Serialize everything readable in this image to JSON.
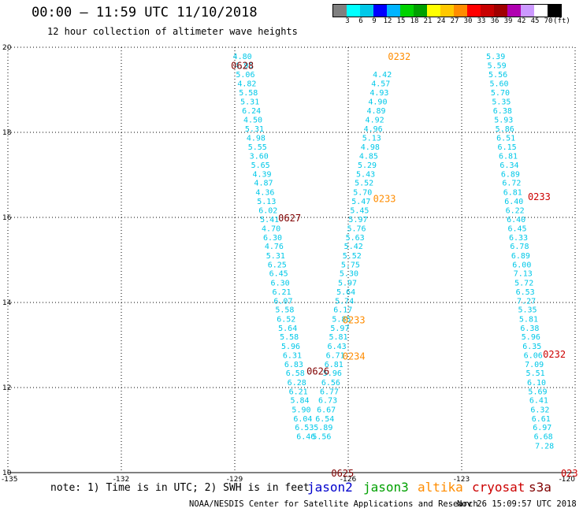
{
  "header": {
    "title": "00:00 – 11:59 UTC 11/10/2018",
    "subtitle": "12 hour collection of altimeter wave heights"
  },
  "legend": {
    "colors": [
      "#808080",
      "#00ffff",
      "#00c8e8",
      "#0000ff",
      "#00b4ff",
      "#00d300",
      "#00a000",
      "#ffff00",
      "#ffc800",
      "#ff8c00",
      "#ff0000",
      "#c80000",
      "#a00000",
      "#b000b0",
      "#cc99ff",
      "#ffffff",
      "#000000"
    ],
    "labels": [
      "3",
      "6",
      "9",
      "12",
      "15",
      "18",
      "21",
      "24",
      "27",
      "30",
      "33",
      "36",
      "39",
      "42",
      "45",
      "70",
      "(ft)"
    ]
  },
  "footer": {
    "note": "note: 1) Time is in UTC; 2) SWH is in feet",
    "satellites": [
      {
        "name": "jason2",
        "color": "#0000cc"
      },
      {
        "name": "jason3",
        "color": "#00a000"
      },
      {
        "name": "altika",
        "color": "#ff8c00"
      },
      {
        "name": "cryosat",
        "color": "#cc0000"
      },
      {
        "name": "s3a",
        "color": "#800000"
      }
    ],
    "credit": "NOAA/NESDIS Center for Satellite Applications and Research",
    "timestamp": "Nov 26 15:09:57 UTC 2018"
  },
  "chart_data": {
    "type": "scatter",
    "title": "00:00 – 11:59 UTC 11/10/2018",
    "subtitle": "12 hour collection of altimeter wave heights",
    "xlim": [
      -135,
      -120
    ],
    "ylim": [
      10,
      20
    ],
    "x_ticks": [
      -135,
      -132,
      -129,
      -126,
      -123,
      -120
    ],
    "x_tick_labels": [
      "-135",
      "-132",
      "-129",
      "-126",
      "-123",
      "-120"
    ],
    "y_ticks": [
      10,
      12,
      14,
      16,
      18,
      20
    ],
    "y_tick_labels": [
      "10",
      "12",
      "14",
      "16",
      "18",
      "20"
    ],
    "grid": true,
    "point_color": "#00c8e8",
    "series": [
      {
        "values": [
          {
            "x": -128.8,
            "y": 19.8,
            "v": "4.80"
          },
          {
            "x": -128.76,
            "y": 19.58,
            "v": "4.95"
          },
          {
            "x": -128.72,
            "y": 19.37,
            "v": "5.06"
          },
          {
            "x": -128.68,
            "y": 19.16,
            "v": "4.82"
          },
          {
            "x": -128.64,
            "y": 18.94,
            "v": "5.58"
          },
          {
            "x": -128.6,
            "y": 18.73,
            "v": "5.31"
          },
          {
            "x": -128.56,
            "y": 18.52,
            "v": "6.24"
          },
          {
            "x": -128.52,
            "y": 18.31,
            "v": "4.50"
          },
          {
            "x": -128.48,
            "y": 18.09,
            "v": "5.31"
          },
          {
            "x": -128.44,
            "y": 17.88,
            "v": "4.98"
          },
          {
            "x": -128.4,
            "y": 17.67,
            "v": "5.55"
          },
          {
            "x": -128.36,
            "y": 17.45,
            "v": "3.60"
          },
          {
            "x": -128.32,
            "y": 17.24,
            "v": "5.65"
          },
          {
            "x": -128.28,
            "y": 17.03,
            "v": "4.39"
          },
          {
            "x": -128.24,
            "y": 16.82,
            "v": "4.87"
          },
          {
            "x": -128.2,
            "y": 16.6,
            "v": "4.36"
          },
          {
            "x": -128.16,
            "y": 16.39,
            "v": "5.13"
          },
          {
            "x": -128.12,
            "y": 16.18,
            "v": "6.02"
          },
          {
            "x": -128.08,
            "y": 15.96,
            "v": "5.41"
          },
          {
            "x": -128.04,
            "y": 15.75,
            "v": "4.70"
          },
          {
            "x": -128.0,
            "y": 15.54,
            "v": "6.30"
          },
          {
            "x": -127.96,
            "y": 15.33,
            "v": "4.76"
          },
          {
            "x": -127.92,
            "y": 15.11,
            "v": "5.31"
          },
          {
            "x": -127.88,
            "y": 14.9,
            "v": "6.25"
          },
          {
            "x": -127.84,
            "y": 14.69,
            "v": "6.45"
          },
          {
            "x": -127.8,
            "y": 14.47,
            "v": "6.30"
          },
          {
            "x": -127.76,
            "y": 14.26,
            "v": "6.21"
          },
          {
            "x": -127.72,
            "y": 14.05,
            "v": "6.07"
          },
          {
            "x": -127.68,
            "y": 13.84,
            "v": "5.58"
          },
          {
            "x": -127.64,
            "y": 13.62,
            "v": "6.52"
          },
          {
            "x": -127.6,
            "y": 13.41,
            "v": "5.64"
          },
          {
            "x": -127.56,
            "y": 13.2,
            "v": "5.58"
          },
          {
            "x": -127.52,
            "y": 12.98,
            "v": "5.96"
          },
          {
            "x": -127.48,
            "y": 12.77,
            "v": "6.31"
          },
          {
            "x": -127.44,
            "y": 12.56,
            "v": "6.83"
          },
          {
            "x": -127.4,
            "y": 12.35,
            "v": "6.58"
          },
          {
            "x": -127.36,
            "y": 12.13,
            "v": "6.28"
          },
          {
            "x": -127.32,
            "y": 11.92,
            "v": "6.21"
          },
          {
            "x": -127.28,
            "y": 11.71,
            "v": "5.84"
          },
          {
            "x": -127.24,
            "y": 11.49,
            "v": "5.90"
          },
          {
            "x": -127.2,
            "y": 11.28,
            "v": "6.04"
          },
          {
            "x": -127.16,
            "y": 11.07,
            "v": "6.53"
          },
          {
            "x": -127.12,
            "y": 10.86,
            "v": "6.46"
          }
        ]
      },
      {
        "values": [
          {
            "x": -126.7,
            "y": 10.86,
            "v": "5.56"
          },
          {
            "x": -126.66,
            "y": 11.07,
            "v": "5.89"
          },
          {
            "x": -126.62,
            "y": 11.28,
            "v": "6.54"
          },
          {
            "x": -126.58,
            "y": 11.49,
            "v": "6.67"
          },
          {
            "x": -126.54,
            "y": 11.71,
            "v": "6.73"
          },
          {
            "x": -126.5,
            "y": 11.92,
            "v": "6.77"
          },
          {
            "x": -126.46,
            "y": 12.13,
            "v": "6.56"
          },
          {
            "x": -126.42,
            "y": 12.35,
            "v": "5.96"
          },
          {
            "x": -126.38,
            "y": 12.56,
            "v": "6.81"
          },
          {
            "x": -126.34,
            "y": 12.77,
            "v": "6.71"
          },
          {
            "x": -126.3,
            "y": 12.98,
            "v": "6.43"
          },
          {
            "x": -126.26,
            "y": 13.2,
            "v": "5.81"
          },
          {
            "x": -126.22,
            "y": 13.41,
            "v": "5.97"
          },
          {
            "x": -126.18,
            "y": 13.62,
            "v": "5.85"
          },
          {
            "x": -126.14,
            "y": 13.84,
            "v": "6.17"
          },
          {
            "x": -126.1,
            "y": 14.05,
            "v": "5.74"
          },
          {
            "x": -126.06,
            "y": 14.26,
            "v": "5.64"
          },
          {
            "x": -126.02,
            "y": 14.47,
            "v": "5.97"
          },
          {
            "x": -125.98,
            "y": 14.69,
            "v": "5.30"
          },
          {
            "x": -125.94,
            "y": 14.9,
            "v": "5.75"
          },
          {
            "x": -125.9,
            "y": 15.11,
            "v": "5.52"
          },
          {
            "x": -125.86,
            "y": 15.33,
            "v": "5.42"
          },
          {
            "x": -125.82,
            "y": 15.54,
            "v": "5.63"
          },
          {
            "x": -125.78,
            "y": 15.75,
            "v": "5.76"
          },
          {
            "x": -125.74,
            "y": 15.96,
            "v": "5.97"
          },
          {
            "x": -125.7,
            "y": 16.18,
            "v": "5.45"
          },
          {
            "x": -125.66,
            "y": 16.39,
            "v": "5.47"
          },
          {
            "x": -125.62,
            "y": 16.6,
            "v": "5.70"
          },
          {
            "x": -125.58,
            "y": 16.82,
            "v": "5.52"
          },
          {
            "x": -125.54,
            "y": 17.03,
            "v": "5.43"
          },
          {
            "x": -125.5,
            "y": 17.24,
            "v": "5.29"
          },
          {
            "x": -125.46,
            "y": 17.45,
            "v": "4.85"
          },
          {
            "x": -125.42,
            "y": 17.67,
            "v": "4.98"
          },
          {
            "x": -125.38,
            "y": 17.88,
            "v": "5.13"
          },
          {
            "x": -125.34,
            "y": 18.09,
            "v": "4.96"
          },
          {
            "x": -125.3,
            "y": 18.31,
            "v": "4.92"
          },
          {
            "x": -125.26,
            "y": 18.52,
            "v": "4.89"
          },
          {
            "x": -125.22,
            "y": 18.73,
            "v": "4.90"
          },
          {
            "x": -125.18,
            "y": 18.94,
            "v": "4.93"
          },
          {
            "x": -125.14,
            "y": 19.16,
            "v": "4.57"
          },
          {
            "x": -125.1,
            "y": 19.37,
            "v": "4.42"
          }
        ]
      },
      {
        "values": [
          {
            "x": -122.1,
            "y": 19.8,
            "v": "5.39"
          },
          {
            "x": -122.07,
            "y": 19.58,
            "v": "5.59"
          },
          {
            "x": -122.04,
            "y": 19.37,
            "v": "5.56"
          },
          {
            "x": -122.01,
            "y": 19.16,
            "v": "5.60"
          },
          {
            "x": -121.98,
            "y": 18.94,
            "v": "5.70"
          },
          {
            "x": -121.95,
            "y": 18.73,
            "v": "5.35"
          },
          {
            "x": -121.92,
            "y": 18.52,
            "v": "6.38"
          },
          {
            "x": -121.89,
            "y": 18.31,
            "v": "5.93"
          },
          {
            "x": -121.86,
            "y": 18.09,
            "v": "5.86"
          },
          {
            "x": -121.83,
            "y": 17.88,
            "v": "6.51"
          },
          {
            "x": -121.8,
            "y": 17.67,
            "v": "6.15"
          },
          {
            "x": -121.77,
            "y": 17.45,
            "v": "6.81"
          },
          {
            "x": -121.74,
            "y": 17.24,
            "v": "6.34"
          },
          {
            "x": -121.71,
            "y": 17.03,
            "v": "6.89"
          },
          {
            "x": -121.68,
            "y": 16.82,
            "v": "6.72"
          },
          {
            "x": -121.65,
            "y": 16.6,
            "v": "6.81"
          },
          {
            "x": -121.62,
            "y": 16.39,
            "v": "6.40"
          },
          {
            "x": -121.59,
            "y": 16.18,
            "v": "6.22"
          },
          {
            "x": -121.56,
            "y": 15.96,
            "v": "6.40"
          },
          {
            "x": -121.53,
            "y": 15.75,
            "v": "6.45"
          },
          {
            "x": -121.5,
            "y": 15.54,
            "v": "6.33"
          },
          {
            "x": -121.47,
            "y": 15.33,
            "v": "6.78"
          },
          {
            "x": -121.44,
            "y": 15.11,
            "v": "6.89"
          },
          {
            "x": -121.41,
            "y": 14.9,
            "v": "6.00"
          },
          {
            "x": -121.38,
            "y": 14.69,
            "v": "7.13"
          },
          {
            "x": -121.35,
            "y": 14.47,
            "v": "5.72"
          },
          {
            "x": -121.32,
            "y": 14.26,
            "v": "6.53"
          },
          {
            "x": -121.29,
            "y": 14.05,
            "v": "7.27"
          },
          {
            "x": -121.26,
            "y": 13.84,
            "v": "5.35"
          },
          {
            "x": -121.23,
            "y": 13.62,
            "v": "5.81"
          },
          {
            "x": -121.2,
            "y": 13.41,
            "v": "6.38"
          },
          {
            "x": -121.17,
            "y": 13.2,
            "v": "5.96"
          },
          {
            "x": -121.14,
            "y": 12.98,
            "v": "6.35"
          },
          {
            "x": -121.11,
            "y": 12.77,
            "v": "6.06"
          },
          {
            "x": -121.08,
            "y": 12.56,
            "v": "7.09"
          },
          {
            "x": -121.05,
            "y": 12.35,
            "v": "5.51"
          },
          {
            "x": -121.02,
            "y": 12.13,
            "v": "6.10"
          },
          {
            "x": -120.99,
            "y": 11.92,
            "v": "5.69"
          },
          {
            "x": -120.96,
            "y": 11.71,
            "v": "6.41"
          },
          {
            "x": -120.93,
            "y": 11.49,
            "v": "6.32"
          },
          {
            "x": -120.9,
            "y": 11.28,
            "v": "6.61"
          },
          {
            "x": -120.87,
            "y": 11.07,
            "v": "6.97"
          },
          {
            "x": -120.84,
            "y": 10.86,
            "v": "6.68"
          },
          {
            "x": -120.81,
            "y": 10.64,
            "v": "7.28"
          }
        ]
      }
    ],
    "annotations": [
      {
        "x": -128.8,
        "y": 19.58,
        "text": "0628",
        "color": "#800000"
      },
      {
        "x": -127.55,
        "y": 16.0,
        "text": "0627",
        "color": "#800000"
      },
      {
        "x": -126.8,
        "y": 12.4,
        "text": "0626",
        "color": "#800000"
      },
      {
        "x": -126.15,
        "y": 10.0,
        "text": "0625",
        "color": "#800000"
      },
      {
        "x": -124.65,
        "y": 19.8,
        "text": "0232",
        "color": "#ff8c00"
      },
      {
        "x": -125.04,
        "y": 16.45,
        "text": "0233",
        "color": "#ff8c00"
      },
      {
        "x": -125.85,
        "y": 13.6,
        "text": "0233",
        "color": "#ff8c00"
      },
      {
        "x": -125.85,
        "y": 12.75,
        "text": "0234",
        "color": "#ff8c00"
      },
      {
        "x": -120.95,
        "y": 16.5,
        "text": "0233",
        "color": "#cc0000"
      },
      {
        "x": -120.55,
        "y": 12.8,
        "text": "0232",
        "color": "#cc0000"
      },
      {
        "x": -120.15,
        "y": 10.0,
        "text": "023",
        "color": "#cc0000"
      }
    ]
  }
}
